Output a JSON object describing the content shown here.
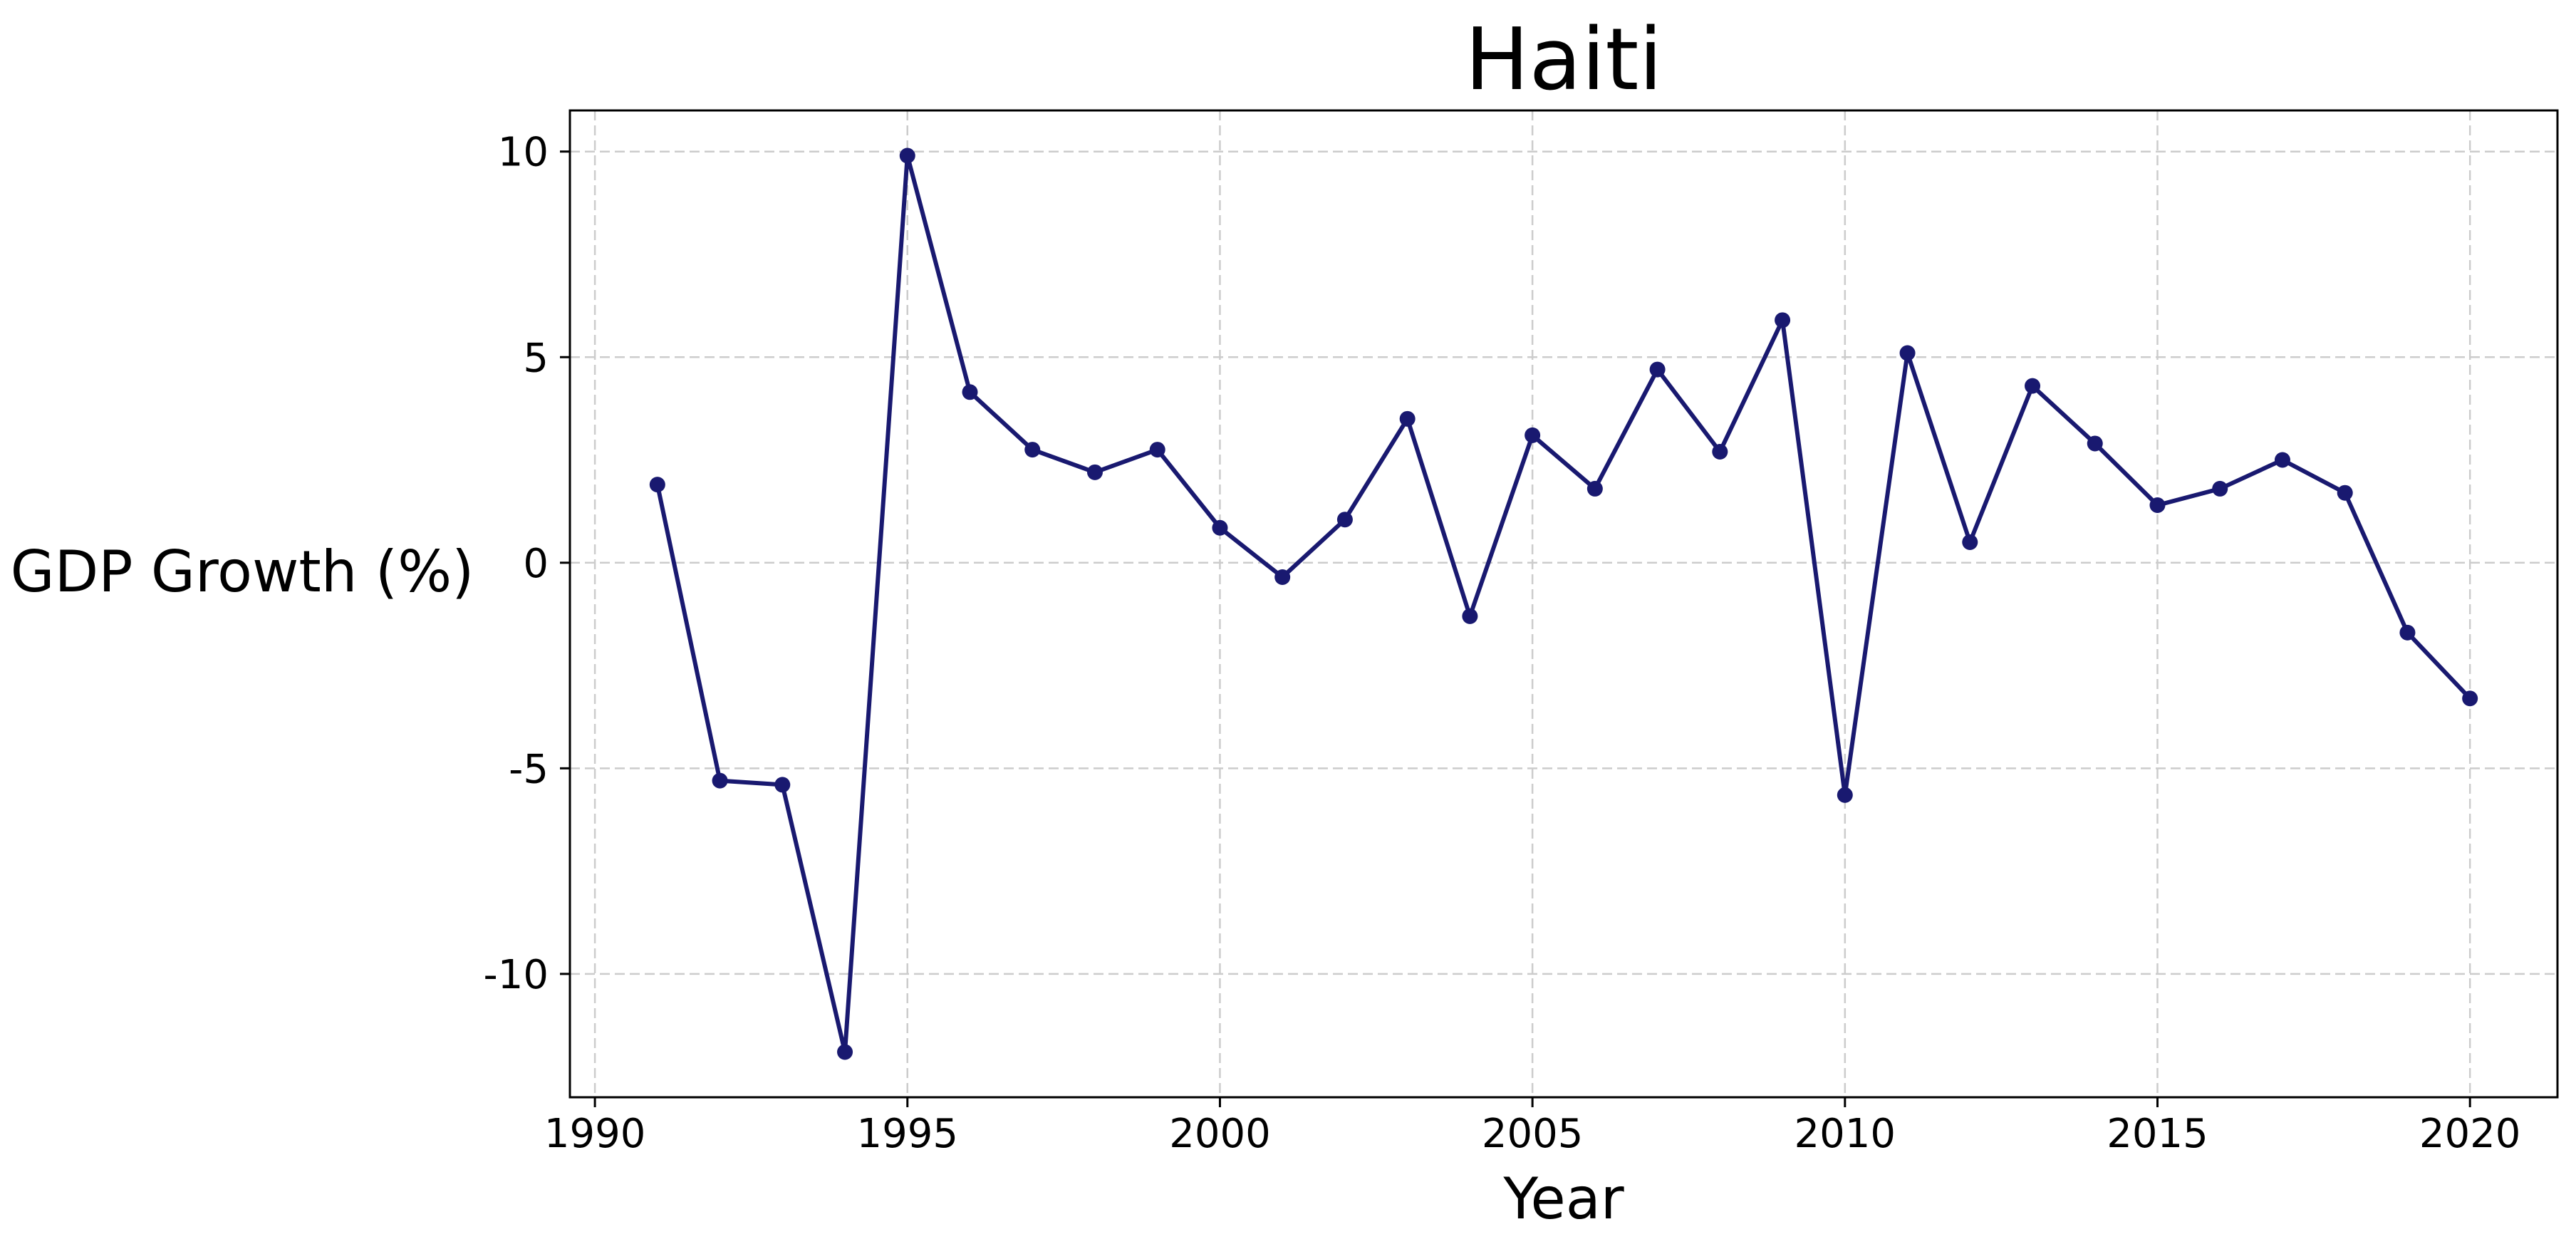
{
  "chart_data": {
    "type": "line",
    "title": "Haiti",
    "xlabel": "Year",
    "ylabel": "GDP Growth (%)",
    "xlim": [
      1989.6,
      2021.4
    ],
    "ylim": [
      -13,
      11
    ],
    "xticks": [
      1990,
      1995,
      2000,
      2005,
      2010,
      2015,
      2020
    ],
    "yticks": [
      -10,
      -5,
      0,
      5,
      10
    ],
    "grid": true,
    "line_color": "#191970",
    "grid_color": "#cccccc",
    "series": [
      {
        "x": [
          1991,
          1992,
          1993,
          1994,
          1995,
          1996,
          1997,
          1998,
          1999,
          2000,
          2001,
          2002,
          2003,
          2004,
          2005,
          2006,
          2007,
          2008,
          2009,
          2010,
          2011,
          2012,
          2013,
          2014,
          2015,
          2016,
          2017,
          2018,
          2019,
          2020
        ],
        "y": [
          1.9,
          -5.3,
          -5.4,
          -11.9,
          9.9,
          4.15,
          2.75,
          2.2,
          2.75,
          0.85,
          -0.35,
          1.05,
          3.5,
          -1.3,
          3.1,
          1.8,
          4.7,
          2.7,
          5.9,
          -5.65,
          5.1,
          0.5,
          4.3,
          2.9,
          1.4,
          1.8,
          2.5,
          1.7,
          -1.7,
          -3.3
        ]
      }
    ]
  }
}
